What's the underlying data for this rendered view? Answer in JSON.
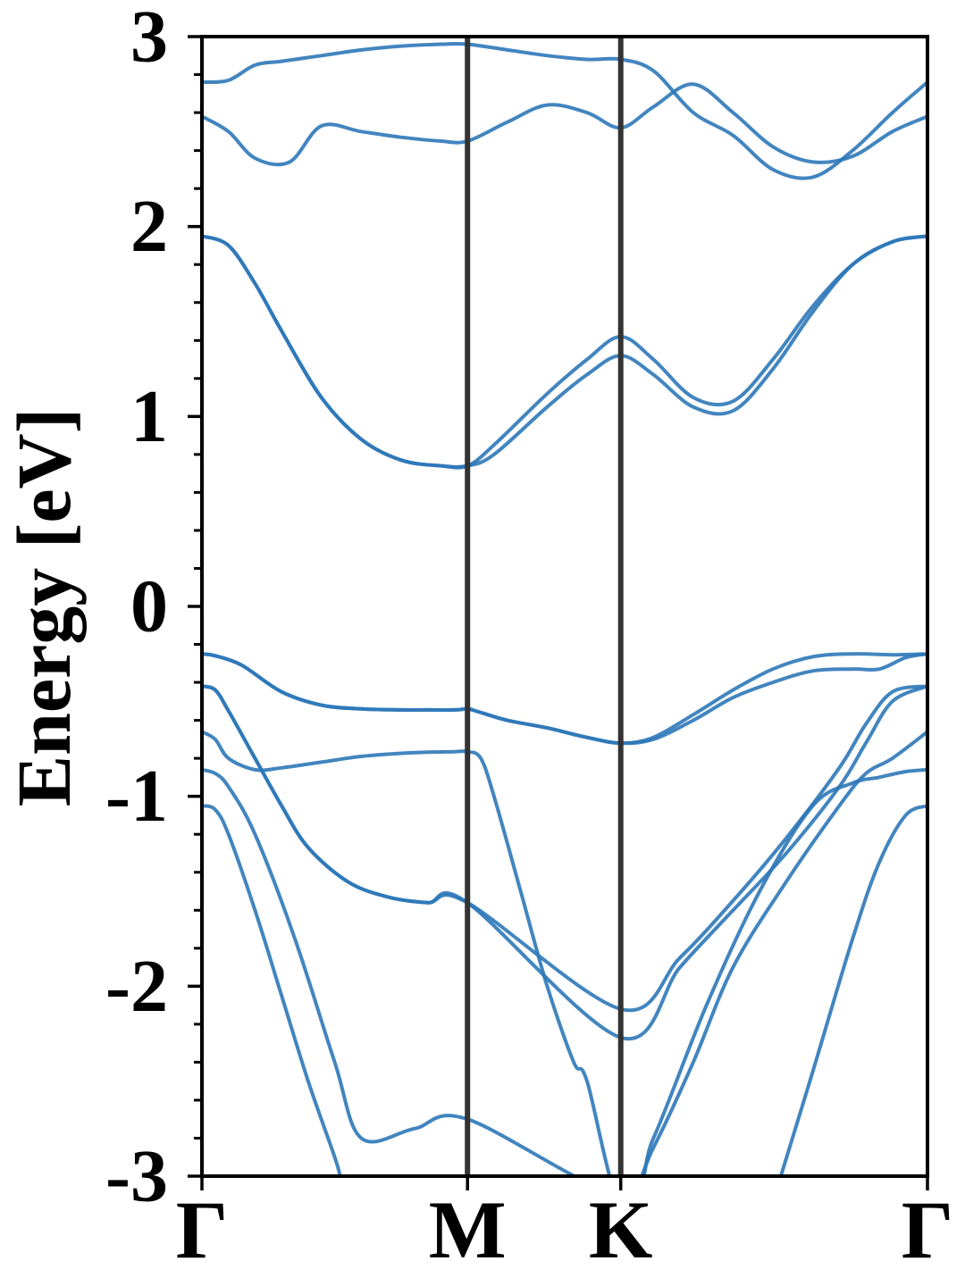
{
  "chart_data": {
    "type": "line",
    "title": "",
    "ylabel": "Energy [eV]",
    "xlabel": "",
    "ylim": [
      -3,
      3
    ],
    "y_ticks": [
      {
        "value": 3,
        "label": "3"
      },
      {
        "value": 2,
        "label": "2"
      },
      {
        "value": 1,
        "label": "1"
      },
      {
        "value": 0,
        "label": "0"
      },
      {
        "value": -1,
        "label": "-1"
      },
      {
        "value": -2,
        "label": "-2"
      },
      {
        "value": -3,
        "label": "-3"
      }
    ],
    "y_minor_step": 0.2,
    "x_ticks": [
      {
        "value": 0,
        "label": "Γ"
      },
      {
        "value": 1,
        "label": "M"
      },
      {
        "value": 1.577,
        "label": "K"
      },
      {
        "value": 2.732,
        "label": "Γ"
      }
    ],
    "xlim": [
      0,
      2.732
    ],
    "high_symmetry_lines": [
      1,
      1.577
    ],
    "grid": false,
    "legend": "none",
    "colors": {
      "bands": "#2E78B8",
      "symmetry_line": "#333333",
      "axis": "#000000"
    },
    "series": [
      {
        "x": [
          0,
          0.05,
          0.15,
          0.3,
          0.45,
          0.6,
          0.75,
          0.85,
          0.95,
          1.0,
          1.03,
          1.15,
          1.3,
          1.45,
          1.577,
          1.7,
          1.85,
          2.0,
          2.15,
          2.3,
          2.45,
          2.6,
          2.732
        ],
        "values": [
          -0.25,
          -0.26,
          -0.31,
          -0.45,
          -0.52,
          -0.54,
          -0.545,
          -0.545,
          -0.545,
          -0.54,
          -0.55,
          -0.6,
          -0.64,
          -0.69,
          -0.72,
          -0.69,
          -0.57,
          -0.44,
          -0.33,
          -0.265,
          -0.25,
          -0.255,
          -0.25
        ]
      },
      {
        "x": [
          0,
          0.05,
          0.15,
          0.3,
          0.45,
          0.6,
          0.75,
          0.85,
          0.95,
          1.0,
          1.03,
          1.15,
          1.3,
          1.45,
          1.577,
          1.7,
          1.85,
          2.0,
          2.15,
          2.3,
          2.45,
          2.55,
          2.65,
          2.732
        ],
        "values": [
          -0.25,
          -0.26,
          -0.31,
          -0.45,
          -0.52,
          -0.54,
          -0.545,
          -0.545,
          -0.545,
          -0.54,
          -0.55,
          -0.6,
          -0.64,
          -0.69,
          -0.72,
          -0.7,
          -0.6,
          -0.48,
          -0.4,
          -0.34,
          -0.33,
          -0.33,
          -0.27,
          -0.25
        ]
      },
      {
        "x": [
          0,
          0.05,
          0.1,
          0.2,
          0.3,
          0.4,
          0.55,
          0.7,
          0.85,
          1.0,
          1.577,
          1.8,
          2.0,
          2.2,
          2.4,
          2.5,
          2.6,
          2.732
        ],
        "values": [
          -0.42,
          -0.44,
          -0.55,
          -0.8,
          -1.05,
          -1.27,
          -1.45,
          -1.53,
          -1.56,
          -1.56,
          -2.12,
          -1.85,
          -1.55,
          -1.22,
          -0.85,
          -0.62,
          -0.45,
          -0.42
        ]
      },
      {
        "x": [
          0,
          0.05,
          0.1,
          0.2,
          0.3,
          0.4,
          0.55,
          0.7,
          0.85,
          1.0,
          1.577,
          1.8,
          2.0,
          2.2,
          2.4,
          2.5,
          2.6,
          2.732
        ],
        "values": [
          -0.42,
          -0.44,
          -0.55,
          -0.8,
          -1.05,
          -1.27,
          -1.45,
          -1.53,
          -1.56,
          -1.56,
          -2.27,
          -1.9,
          -1.6,
          -1.3,
          -0.95,
          -0.72,
          -0.5,
          -0.42
        ]
      },
      {
        "x": [
          0,
          0.05,
          0.1,
          0.2,
          0.3,
          0.45,
          0.6,
          0.8,
          0.95,
          1.0,
          1.05,
          1.1,
          1.2,
          1.3,
          1.4,
          1.45,
          1.577,
          1.7,
          1.85,
          2.0,
          2.2,
          2.4,
          2.5,
          2.6,
          2.732
        ],
        "values": [
          -0.66,
          -0.7,
          -0.8,
          -0.86,
          -0.85,
          -0.82,
          -0.79,
          -0.77,
          -0.765,
          -0.765,
          -0.8,
          -1.0,
          -1.5,
          -2.0,
          -2.4,
          -2.5,
          -3.15,
          -2.85,
          -2.4,
          -1.9,
          -1.45,
          -1.05,
          -0.88,
          -0.8,
          -0.66
        ]
      },
      {
        "x": [
          0,
          0.05,
          0.1,
          0.2,
          0.35,
          0.5,
          0.6,
          0.8,
          1.0,
          1.577,
          1.7,
          1.9,
          2.1,
          2.3,
          2.45,
          2.55,
          2.65,
          2.732
        ],
        "values": [
          -0.86,
          -0.88,
          -0.95,
          -1.2,
          -1.75,
          -2.4,
          -2.8,
          -2.75,
          -2.7,
          -3.1,
          -2.8,
          -2.1,
          -1.5,
          -1.05,
          -0.93,
          -0.9,
          -0.87,
          -0.86
        ]
      },
      {
        "x": [
          0,
          0.05,
          0.1,
          0.2,
          0.3,
          0.4,
          0.5,
          0.52
        ],
        "values": [
          -1.05,
          -1.07,
          -1.2,
          -1.6,
          -2.05,
          -2.5,
          -2.9,
          -3.0
        ]
      },
      {
        "x": [
          2.18,
          2.3,
          2.45,
          2.55,
          2.65,
          2.732
        ],
        "values": [
          -3.0,
          -2.45,
          -1.75,
          -1.35,
          -1.1,
          -1.05
        ]
      },
      {
        "x": [
          0,
          0.1,
          0.2,
          0.3,
          0.45,
          0.6,
          0.75,
          0.9,
          1.0,
          1.1,
          1.3,
          1.45,
          1.577,
          1.7,
          1.85,
          2.0,
          2.15,
          2.3,
          2.45,
          2.6,
          2.732
        ],
        "values": [
          1.95,
          1.9,
          1.7,
          1.45,
          1.1,
          0.88,
          0.77,
          0.74,
          0.74,
          0.85,
          1.12,
          1.3,
          1.42,
          1.3,
          1.1,
          1.08,
          1.3,
          1.58,
          1.8,
          1.92,
          1.95
        ]
      },
      {
        "x": [
          0,
          0.1,
          0.2,
          0.3,
          0.45,
          0.6,
          0.75,
          0.9,
          1.0,
          1.1,
          1.3,
          1.45,
          1.577,
          1.7,
          1.85,
          2.0,
          2.15,
          2.3,
          2.45,
          2.6,
          2.732
        ],
        "values": [
          1.95,
          1.9,
          1.7,
          1.45,
          1.1,
          0.88,
          0.77,
          0.74,
          0.74,
          0.8,
          1.05,
          1.22,
          1.32,
          1.22,
          1.05,
          1.03,
          1.25,
          1.55,
          1.8,
          1.92,
          1.95
        ]
      },
      {
        "x": [
          0,
          0.1,
          0.2,
          0.33,
          0.45,
          0.6,
          0.75,
          0.9,
          1.0,
          1.15,
          1.3,
          1.45,
          1.577,
          1.7,
          1.85,
          2.0,
          2.15,
          2.3,
          2.45,
          2.6,
          2.732
        ],
        "values": [
          2.58,
          2.5,
          2.36,
          2.34,
          2.53,
          2.5,
          2.47,
          2.45,
          2.45,
          2.55,
          2.64,
          2.6,
          2.52,
          2.63,
          2.75,
          2.6,
          2.42,
          2.34,
          2.37,
          2.5,
          2.58
        ]
      },
      {
        "x": [
          0,
          0.1,
          0.2,
          0.3,
          0.45,
          0.6,
          0.75,
          0.9,
          1.0,
          1.15,
          1.3,
          1.45,
          1.577,
          1.7,
          1.85,
          2.0,
          2.15,
          2.3,
          2.45,
          2.6,
          2.732
        ],
        "values": [
          2.76,
          2.77,
          2.85,
          2.87,
          2.9,
          2.93,
          2.95,
          2.96,
          2.96,
          2.93,
          2.9,
          2.88,
          2.88,
          2.82,
          2.6,
          2.48,
          2.3,
          2.26,
          2.4,
          2.6,
          2.76
        ]
      }
    ]
  }
}
